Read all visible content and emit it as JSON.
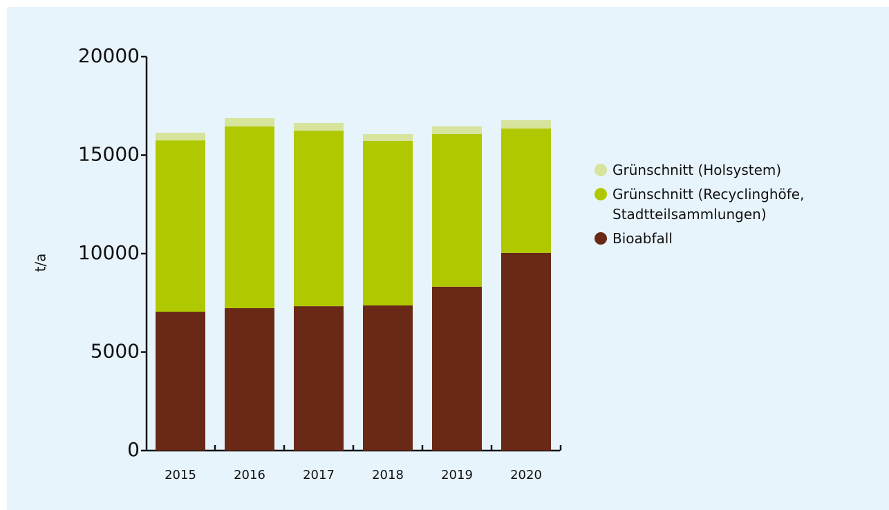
{
  "chart_data": {
    "type": "stacked_bar",
    "ylabel": "t/a",
    "categories": [
      "2015",
      "2016",
      "2017",
      "2018",
      "2019",
      "2020"
    ],
    "series": [
      {
        "name": "Bioabfall",
        "color": "#692916",
        "values": [
          7050,
          7230,
          7330,
          7370,
          8320,
          10040
        ]
      },
      {
        "name": "Grünschnitt (Recyclinghöfe, Stadtteilsammlungen)",
        "color": "#b0c800",
        "values": [
          8700,
          9230,
          8910,
          8350,
          7750,
          6310
        ]
      },
      {
        "name": "Grünschnitt (Holsystem)",
        "color": "#d6e49c",
        "values": [
          390,
          420,
          390,
          350,
          390,
          420
        ]
      }
    ],
    "ylim": [
      0,
      20000
    ],
    "yticks": [
      0,
      5000,
      10000,
      15000,
      20000
    ]
  }
}
